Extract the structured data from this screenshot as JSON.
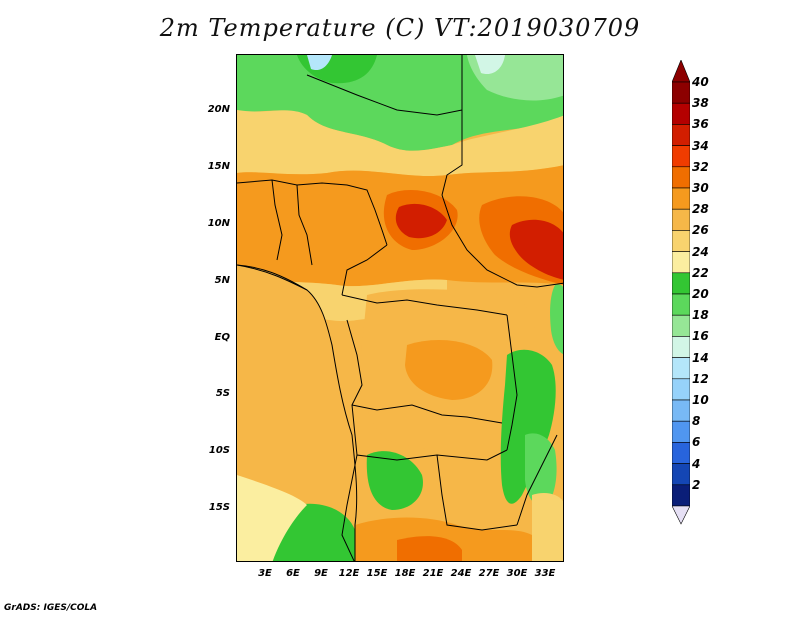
{
  "title": "2m Temperature (C) VT:2019030709",
  "credit": "GrADS: IGES/COLA",
  "latitude_labels": [
    "20N",
    "15N",
    "10N",
    "5N",
    "EQ",
    "5S",
    "10S",
    "15S"
  ],
  "longitude_labels": [
    "3E",
    "6E",
    "9E",
    "12E",
    "15E",
    "18E",
    "21E",
    "24E",
    "27E",
    "30E",
    "33E"
  ],
  "colorbar": {
    "labels": [
      "40",
      "38",
      "36",
      "34",
      "32",
      "30",
      "28",
      "26",
      "24",
      "22",
      "20",
      "18",
      "16",
      "14",
      "12",
      "10",
      "8",
      "6",
      "4",
      "2"
    ],
    "colors": [
      "#8c0000",
      "#b40000",
      "#d21e00",
      "#f03c00",
      "#f06e00",
      "#f59a1e",
      "#f6b748",
      "#f8d36e",
      "#fbeea0",
      "#33c633",
      "#5cd85c",
      "#96e696",
      "#d2f6e6",
      "#b4e6fa",
      "#96d2fa",
      "#78b9f5",
      "#5096f0",
      "#2864dc",
      "#1446b4",
      "#0a1e78"
    ]
  },
  "colors": {
    "orange_light": "#f6b748",
    "orange_mid": "#f59a1e",
    "orange_dark": "#f06e00",
    "red": "#d21e00",
    "yellow": "#f8d36e",
    "pale_yellow": "#fbeea0",
    "green": "#33c633",
    "green_light": "#5cd85c",
    "green_pale": "#96e696",
    "cyan": "#d2f6e6",
    "blue_light": "#b4e6fa"
  }
}
